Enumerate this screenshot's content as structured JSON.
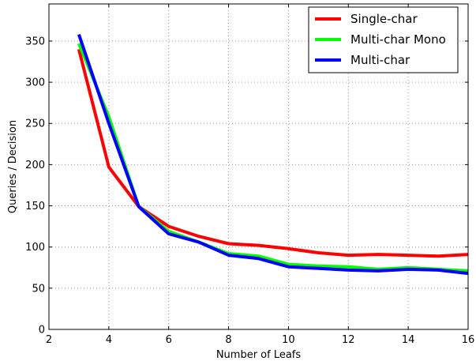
{
  "chart_data": {
    "type": "line",
    "xlabel": "Number of Leafs",
    "ylabel": "Queries / Decision",
    "xlim": [
      2,
      16
    ],
    "ylim": [
      0,
      395
    ],
    "xticks": [
      2,
      4,
      6,
      8,
      10,
      12,
      14,
      16
    ],
    "yticks": [
      0,
      50,
      100,
      150,
      200,
      250,
      300,
      350
    ],
    "grid": true,
    "legend_position": "top-right",
    "x": [
      3,
      4,
      5,
      6,
      7,
      8,
      9,
      10,
      11,
      12,
      13,
      14,
      15,
      16
    ],
    "series": [
      {
        "name": "Single-char",
        "color": "#ff0000",
        "values": [
          340,
          197,
          149,
          125,
          113,
          104,
          102,
          98,
          93,
          90,
          91,
          90,
          89,
          91
        ]
      },
      {
        "name": "Multi-char Mono",
        "color": "#00ff00",
        "values": [
          347,
          258,
          149,
          119,
          106,
          92,
          89,
          79,
          77,
          76,
          73,
          75,
          73,
          71
        ]
      },
      {
        "name": "Multi-char",
        "color": "#0000ff",
        "values": [
          358,
          250,
          149,
          116,
          106,
          90,
          86,
          76,
          74,
          72,
          71,
          73,
          72,
          68
        ]
      }
    ]
  }
}
